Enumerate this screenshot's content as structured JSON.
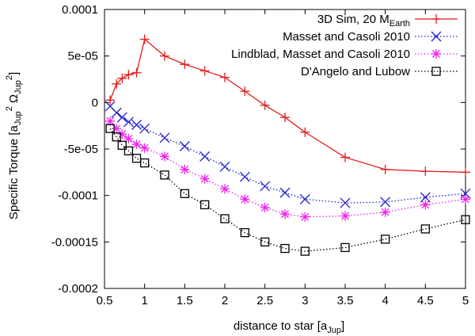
{
  "chart_data": {
    "type": "line",
    "title": "",
    "xlabel": {
      "main": "distance to star [a",
      "sub": "Jup",
      "close": "]"
    },
    "ylabel": {
      "main": "Specific Torque [a",
      "sub1": "Jup",
      "sup1": "2",
      "omega": " Ω",
      "sub2": "Jup",
      "sup2": "2",
      "close": "]"
    },
    "xlim": [
      0.5,
      5
    ],
    "ylim": [
      -0.0002,
      0.0001
    ],
    "xticks": [
      0.5,
      1,
      1.5,
      2,
      2.5,
      3,
      3.5,
      4,
      4.5,
      5
    ],
    "xtick_labels": [
      "0.5",
      "1",
      "1.5",
      "2",
      "2.5",
      "3",
      "3.5",
      "4",
      "4.5",
      "5"
    ],
    "yticks": [
      0.0001,
      5e-05,
      0,
      -5e-05,
      -0.0001,
      -0.00015,
      -0.0002
    ],
    "ytick_labels": [
      "0.0001",
      "5e-05",
      "0",
      "-5e-05",
      "-0.0001",
      "-0.00015",
      "-0.0002"
    ],
    "grid": false,
    "legend_position": "top-right",
    "series": [
      {
        "name": "3D Sim, 20 M",
        "name_sub": "Earth",
        "color": "#e41a1c",
        "marker": "plus",
        "dash": "solid",
        "x": [
          0.57,
          0.65,
          0.72,
          0.8,
          0.9,
          1.0,
          1.25,
          1.5,
          1.75,
          2.0,
          2.25,
          2.5,
          2.75,
          3.0,
          3.5,
          4.0,
          4.5,
          5.0
        ],
        "y": [
          2.5e-06,
          2e-05,
          2.6e-05,
          3e-05,
          3.2e-05,
          6.8e-05,
          5e-05,
          4.1e-05,
          3.4e-05,
          2.7e-05,
          1.2e-05,
          -3e-06,
          -1.6e-05,
          -3.2e-05,
          -5.9e-05,
          -7.2e-05,
          -7.4e-05,
          -7.5e-05
        ]
      },
      {
        "name": "Masset and Casoli 2010",
        "color": "#2222cc",
        "marker": "x",
        "dash": "dotted",
        "x": [
          0.57,
          0.65,
          0.72,
          0.8,
          0.9,
          1.0,
          1.25,
          1.5,
          1.75,
          2.0,
          2.25,
          2.5,
          2.75,
          3.0,
          3.5,
          4.0,
          4.5,
          5.0
        ],
        "y": [
          -4e-06,
          -1.1e-05,
          -1.6e-05,
          -2.1e-05,
          -2.4e-05,
          -2.8e-05,
          -3.8e-05,
          -4.7e-05,
          -5.8e-05,
          -6.9e-05,
          -8e-05,
          -9e-05,
          -9.7e-05,
          -0.000104,
          -0.000108,
          -0.000107,
          -0.000102,
          -9.8e-05
        ]
      },
      {
        "name": "Lindblad, Masset and Casoli 2010",
        "color": "#ee22ee",
        "marker": "star",
        "dash": "dotted",
        "x": [
          0.57,
          0.65,
          0.72,
          0.8,
          0.9,
          1.0,
          1.25,
          1.5,
          1.75,
          2.0,
          2.25,
          2.5,
          2.75,
          3.0,
          3.5,
          4.0,
          4.5,
          5.0
        ],
        "y": [
          -2e-05,
          -2.8e-05,
          -3.4e-05,
          -3.9e-05,
          -4.5e-05,
          -4.9e-05,
          -5.8e-05,
          -7.2e-05,
          -8.2e-05,
          -9.3e-05,
          -0.000104,
          -0.000113,
          -0.00012,
          -0.000123,
          -0.000122,
          -0.000118,
          -0.00011,
          -0.000104
        ]
      },
      {
        "name": "D'Angelo and Lubow",
        "color": "#000000",
        "marker": "square",
        "dash": "dotted",
        "x": [
          0.57,
          0.65,
          0.72,
          0.8,
          0.9,
          1.0,
          1.25,
          1.5,
          1.75,
          2.0,
          2.25,
          2.5,
          2.75,
          3.0,
          3.5,
          4.0,
          4.5,
          5.0
        ],
        "y": [
          -2.8e-05,
          -3.7e-05,
          -4.6e-05,
          -5.2e-05,
          -6e-05,
          -6.5e-05,
          -7.8e-05,
          -9.8e-05,
          -0.00011,
          -0.000125,
          -0.00014,
          -0.00015,
          -0.000157,
          -0.00016,
          -0.000156,
          -0.000147,
          -0.000136,
          -0.000126
        ]
      }
    ]
  }
}
